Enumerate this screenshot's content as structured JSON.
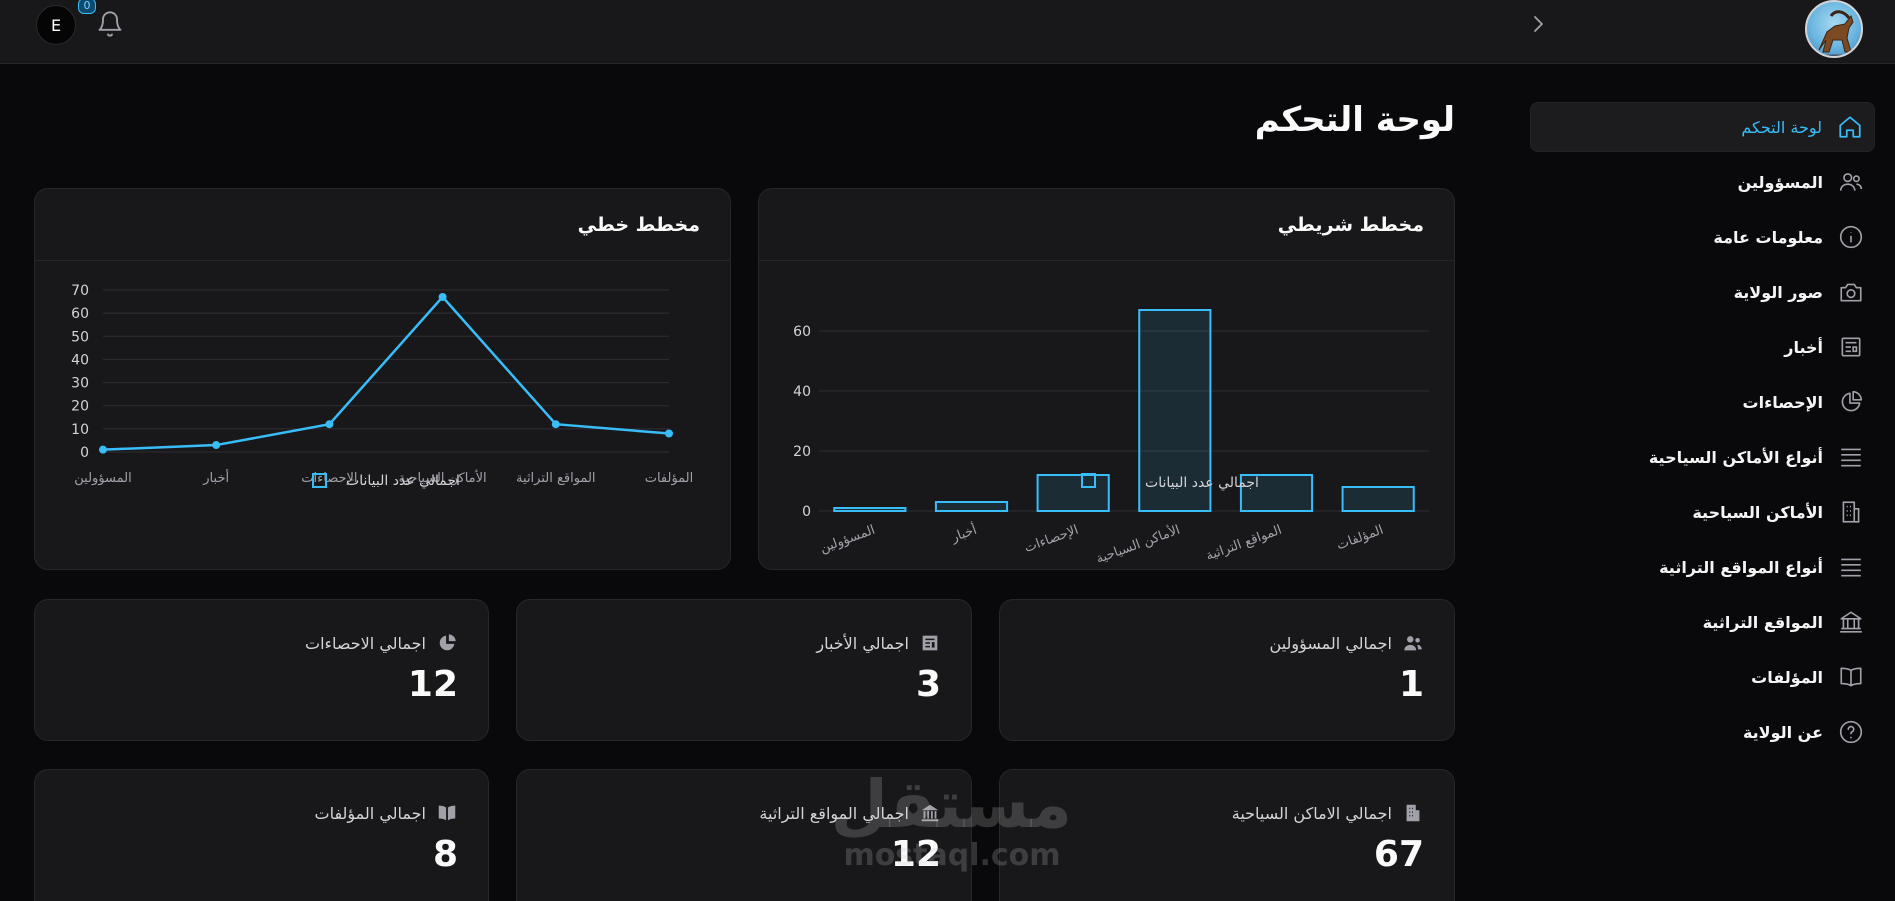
{
  "header": {
    "user_initial": "E",
    "notification_count": "0"
  },
  "page_title": "لوحة التحكم",
  "sidebar": {
    "items": [
      {
        "label": "لوحة التحكم",
        "icon": "home-icon",
        "active": true
      },
      {
        "label": "المسؤولين",
        "icon": "users-icon"
      },
      {
        "label": "معلومات عامة",
        "icon": "info-icon"
      },
      {
        "label": "صور الولاية",
        "icon": "camera-icon"
      },
      {
        "label": "أخبار",
        "icon": "newspaper-icon"
      },
      {
        "label": "الإحصاءات",
        "icon": "pie-chart-icon"
      },
      {
        "label": "أنواع الأماكن السياحية",
        "icon": "list-icon"
      },
      {
        "label": "الأماكن السياحية",
        "icon": "building-icon"
      },
      {
        "label": "أنواع المواقع التراثية",
        "icon": "list-icon"
      },
      {
        "label": "المواقع التراثية",
        "icon": "landmark-icon"
      },
      {
        "label": "المؤلفات",
        "icon": "book-icon"
      },
      {
        "label": "عن الولاية",
        "icon": "help-circle-icon"
      }
    ]
  },
  "bar_card": {
    "title": "مخطط شريطي"
  },
  "line_card": {
    "title": "مخطط خطي"
  },
  "chart_data": [
    {
      "type": "bar",
      "title": "مخطط شريطي",
      "categories": [
        "المسؤولين",
        "أخبار",
        "الإحصاءات",
        "الأماكن السياحية",
        "المواقع التراثية",
        "المؤلفات"
      ],
      "series": [
        {
          "name": "اجمالي عدد البيانات",
          "values": [
            1,
            3,
            12,
            67,
            12,
            8
          ]
        }
      ],
      "ylim": [
        0,
        70
      ],
      "yticks": [
        0,
        20,
        40,
        60
      ],
      "grid": true,
      "legend": "bottom",
      "color": "#38bdf8"
    },
    {
      "type": "line",
      "title": "مخطط خطي",
      "categories": [
        "المسؤولين",
        "أخبار",
        "الإحصاءات",
        "الأماكن السياحية",
        "المواقع التراثية",
        "المؤلفات"
      ],
      "series": [
        {
          "name": "اجمالي عدد البيانات",
          "values": [
            1,
            3,
            12,
            67,
            12,
            8
          ]
        }
      ],
      "ylim": [
        0,
        70
      ],
      "yticks": [
        0,
        10,
        20,
        30,
        40,
        50,
        60,
        70
      ],
      "grid": true,
      "legend": "bottom",
      "color": "#38bdf8"
    }
  ],
  "stats": [
    {
      "label": "اجمالي المسؤولين",
      "value": "1",
      "icon": "users-icon"
    },
    {
      "label": "اجمالي الأخبار",
      "value": "3",
      "icon": "newspaper-icon"
    },
    {
      "label": "اجمالي الاحصاءات",
      "value": "12",
      "icon": "pie-chart-icon"
    },
    {
      "label": "اجمالي الاماكن السياحية",
      "value": "67",
      "icon": "building-icon"
    },
    {
      "label": "اجمالي المواقع التراثية",
      "value": "12",
      "icon": "landmark-icon"
    },
    {
      "label": "اجمالي المؤلفات",
      "value": "8",
      "icon": "book-icon"
    }
  ],
  "watermark": {
    "arabic": "مستقل",
    "latin": "mostaql.com"
  },
  "colors": {
    "accent": "#38bdf8",
    "background": "#09090b",
    "card": "#18181b",
    "border": "#27272a"
  }
}
